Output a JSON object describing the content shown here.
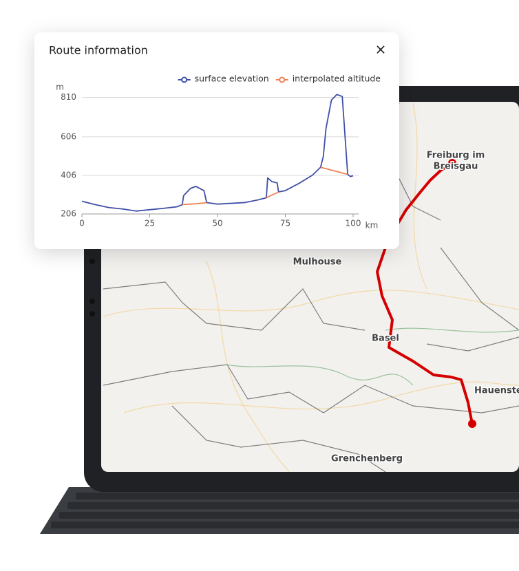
{
  "dialog": {
    "title": "Route information",
    "close": "×"
  },
  "map": {
    "labels": [
      "Freiburg im",
      "Breisgau",
      "Mulhouse",
      "Basel",
      "Hauenstein",
      "Grenchenberg"
    ]
  },
  "chart_data": {
    "type": "line",
    "ylabel": "m",
    "xlabel": "km",
    "x": [
      0,
      5,
      10,
      15,
      20,
      25,
      30,
      35,
      37,
      37.5,
      40,
      42,
      45,
      46,
      50,
      55,
      60,
      65,
      68,
      68.5,
      70,
      72,
      72.5,
      75,
      80,
      85,
      88,
      89,
      90,
      92,
      94,
      96,
      97,
      98,
      99,
      100
    ],
    "series": [
      {
        "name": "surface elevation",
        "color": "#3f4fa8",
        "values": [
          272,
          254,
          239,
          232,
          221,
          228,
          235,
          243,
          254,
          301,
          338,
          349,
          327,
          265,
          257,
          261,
          265,
          279,
          290,
          393,
          374,
          367,
          320,
          327,
          364,
          407,
          448,
          503,
          649,
          796,
          825,
          815,
          613,
          411,
          400,
          404
        ]
      },
      {
        "name": "interpolated altitude",
        "color": "#f08050",
        "values": [
          null,
          null,
          null,
          null,
          null,
          null,
          null,
          null,
          254,
          255,
          257,
          259,
          263,
          265,
          null,
          null,
          null,
          null,
          290,
          294,
          304,
          316,
          320,
          null,
          null,
          null,
          448,
          444,
          441,
          433,
          426,
          418,
          415,
          411,
          null,
          null
        ]
      }
    ],
    "xlim": [
      0,
      100
    ],
    "xticks": [
      0,
      25,
      50,
      75,
      100
    ],
    "ylim": [
      206,
      830
    ],
    "yticks": [
      206,
      406,
      606,
      810
    ],
    "grid": true
  }
}
